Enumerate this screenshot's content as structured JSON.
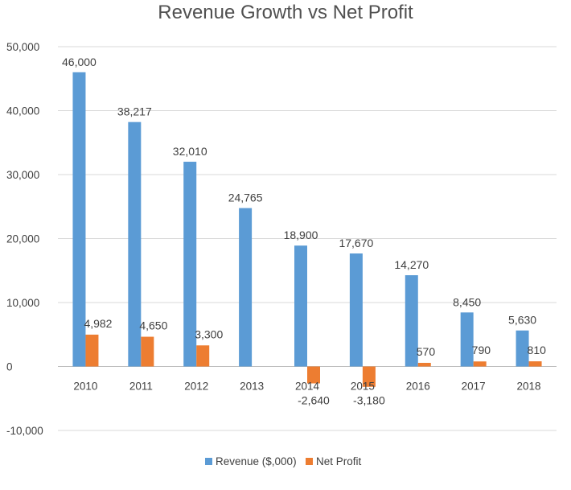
{
  "chart_data": {
    "type": "bar",
    "title": "Revenue Growth vs Net Profit",
    "xlabel": "",
    "ylabel": "",
    "categories": [
      "2010",
      "2011",
      "2012",
      "2013",
      "2014",
      "2015",
      "2016",
      "2017",
      "2018"
    ],
    "ylim": [
      -10000,
      50000
    ],
    "yticks": [
      -10000,
      0,
      10000,
      20000,
      30000,
      40000,
      50000
    ],
    "ytick_labels": [
      "-10,000",
      "0",
      "10,000",
      "20,000",
      "30,000",
      "40,000",
      "50,000"
    ],
    "grid": true,
    "legend_position": "bottom",
    "series": [
      {
        "name": "Revenue ($,000)",
        "color": "#5B9BD5",
        "values": [
          46000,
          38217,
          32010,
          24765,
          18900,
          17670,
          14270,
          8450,
          5630
        ],
        "labels": [
          "46,000",
          "38,217",
          "32,010",
          "24,765",
          "18,900",
          "17,670",
          "14,270",
          "8,450",
          "5,630"
        ]
      },
      {
        "name": "Net Profit",
        "color": "#ED7D31",
        "values": [
          4982,
          4650,
          3300,
          0,
          -2640,
          -3180,
          570,
          790,
          810
        ],
        "labels": [
          "4,982",
          "4,650",
          "3,300",
          "",
          "-2,640",
          "-3,180",
          "570",
          "790",
          "810"
        ]
      }
    ]
  }
}
